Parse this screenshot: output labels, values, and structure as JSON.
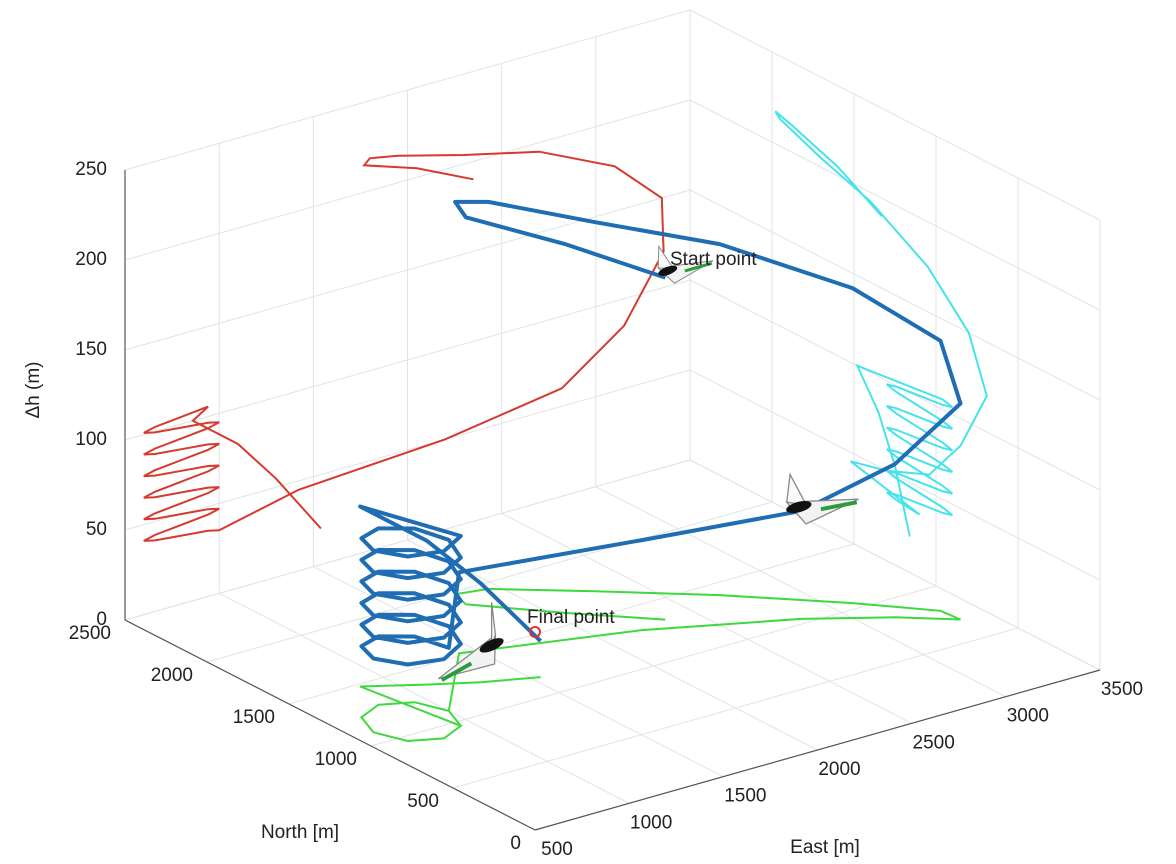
{
  "chart_data": {
    "type": "line3d",
    "xlabel": "East [m]",
    "ylabel": "North [m]",
    "zlabel": "Δh (m)",
    "xlim": [
      500,
      3500
    ],
    "ylim": [
      0,
      2500
    ],
    "zlim": [
      0,
      250
    ],
    "xticks": [
      500,
      1000,
      1500,
      2000,
      2500,
      3000,
      3500
    ],
    "yticks": [
      0,
      500,
      1000,
      1500,
      2000,
      2500
    ],
    "zticks": [
      0,
      50,
      100,
      150,
      200,
      250
    ],
    "grid": true,
    "series": [
      {
        "color": "#1f6db3",
        "x": [
          2350,
          2050,
          1770,
          1800,
          1950,
          2300,
          2700,
          3100,
          3350,
          3360,
          3150,
          2820,
          2200,
          1420,
          1000,
          941,
          800,
          659,
          600,
          659,
          800,
          941,
          1000,
          941,
          800,
          659,
          600,
          659,
          800,
          941,
          1000,
          941,
          800,
          659,
          600,
          659,
          800,
          941,
          1000,
          941,
          800,
          659,
          600,
          659,
          800,
          941,
          1000,
          941,
          800,
          659,
          600,
          659,
          800,
          941,
          1000,
          941,
          800,
          659,
          600,
          659,
          800,
          941,
          860,
          1100,
          1300,
          1540
        ],
        "y": [
          1330,
          1600,
          1880,
          1980,
          1950,
          1700,
          1400,
          1050,
          800,
          690,
          850,
          1040,
          1300,
          1520,
          1100,
          1241,
          1300,
          1241,
          1100,
          959,
          900,
          959,
          1100,
          1241,
          1300,
          1241,
          1100,
          959,
          900,
          959,
          1100,
          1241,
          1300,
          1241,
          1100,
          959,
          900,
          959,
          1100,
          1241,
          1300,
          1241,
          1100,
          959,
          900,
          959,
          1100,
          1241,
          1300,
          1241,
          1100,
          959,
          900,
          959,
          1100,
          1241,
          1300,
          1241,
          1100,
          959,
          900,
          959,
          1480,
          1350,
          1250,
          1160
        ],
        "z": [
          190,
          205,
          215,
          218,
          215,
          205,
          195,
          175,
          150,
          120,
          85,
          60,
          50,
          45,
          35,
          36.5,
          38,
          39.5,
          41,
          42.5,
          44,
          45.5,
          47,
          48.5,
          50,
          51.5,
          53,
          54.5,
          56,
          57.5,
          59,
          60.5,
          62,
          63.5,
          65,
          66.5,
          68,
          69.5,
          71,
          72.5,
          74,
          75.5,
          77,
          78.5,
          80,
          81.5,
          83,
          84.5,
          86,
          87.5,
          89,
          90.5,
          92,
          93.5,
          95,
          96.5,
          98,
          99.5,
          101,
          102.5,
          104,
          105.5,
          100,
          80,
          55,
          20
        ]
      }
    ],
    "shadow_colors": {
      "x_z_wall": "#d6392e",
      "y_z_wall": "#45e3ea",
      "floor": "#3fd83f"
    },
    "annotations": [
      "Start point",
      "Final point"
    ]
  }
}
